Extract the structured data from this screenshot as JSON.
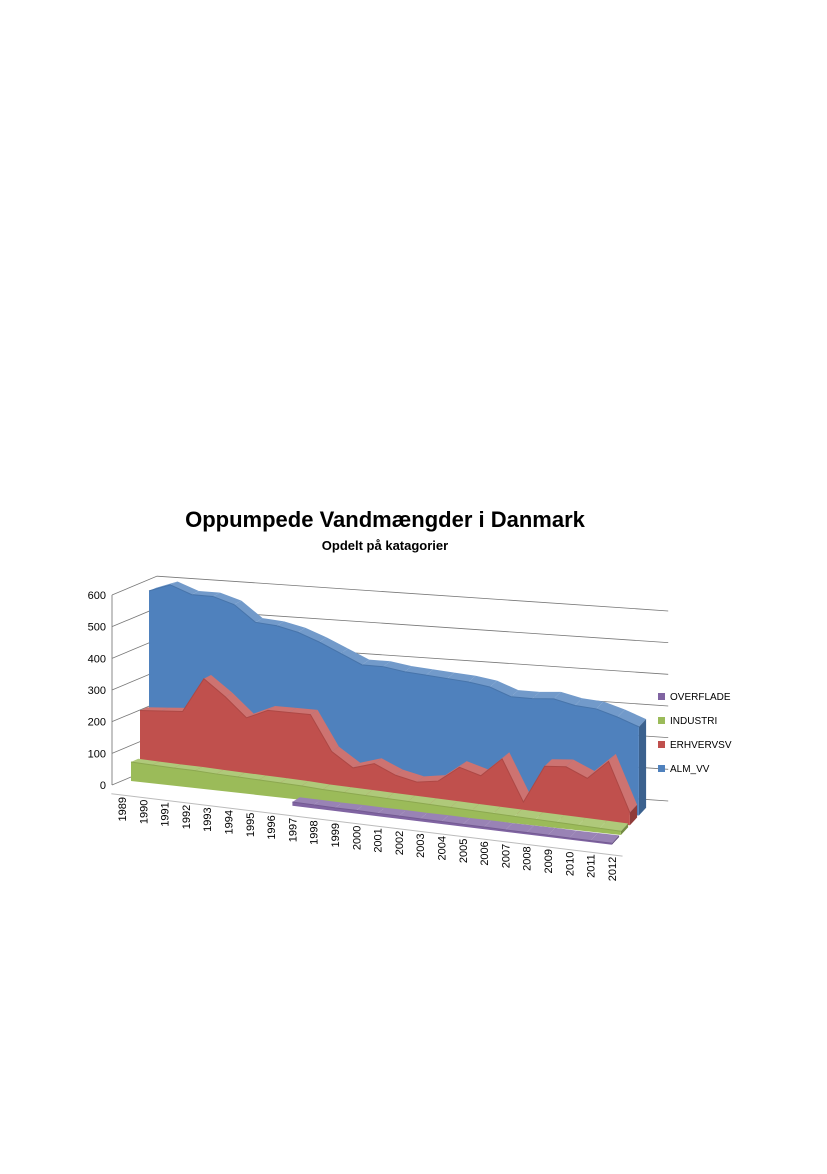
{
  "chart_data": {
    "type": "area3d",
    "title": "Oppumpede Vandmængder i Danmark",
    "subtitle": "Opdelt på katagorier",
    "categories": [
      "1989",
      "1990",
      "1991",
      "1992",
      "1993",
      "1994",
      "1995",
      "1996",
      "1997",
      "1998",
      "1999",
      "2000",
      "2001",
      "2002",
      "2003",
      "2004",
      "2005",
      "2006",
      "2007",
      "2008",
      "2009",
      "2010",
      "2011",
      "2012"
    ],
    "series": [
      {
        "name": "OVERFLADE",
        "color": "#8064a2",
        "values": [
          null,
          null,
          null,
          null,
          null,
          null,
          null,
          null,
          12,
          11,
          10,
          10,
          9,
          9,
          8,
          8,
          7,
          7,
          6,
          6,
          6,
          5,
          5,
          5
        ]
      },
      {
        "name": "INDUSTRI",
        "color": "#9bbb59",
        "values": [
          60,
          58,
          56,
          55,
          52,
          50,
          48,
          46,
          44,
          40,
          38,
          36,
          34,
          32,
          30,
          28,
          26,
          24,
          22,
          20,
          18,
          16,
          14,
          12
        ]
      },
      {
        "name": "ERHVERVSV",
        "color": "#c0504d",
        "values": [
          210,
          215,
          220,
          330,
          280,
          220,
          250,
          250,
          250,
          140,
          95,
          115,
          85,
          70,
          80,
          130,
          110,
          170,
          40,
          160,
          165,
          135,
          195,
          40
        ]
      },
      {
        "name": "ALM_VV",
        "color": "#4f81bd",
        "values": [
          575,
          600,
          575,
          575,
          555,
          505,
          500,
          485,
          460,
          430,
          400,
          400,
          390,
          385,
          380,
          375,
          365,
          340,
          340,
          345,
          330,
          325,
          305,
          280
        ]
      }
    ],
    "ylim": [
      0,
      600
    ],
    "yticks": [
      0,
      100,
      200,
      300,
      400,
      500,
      600
    ],
    "grid": true
  }
}
